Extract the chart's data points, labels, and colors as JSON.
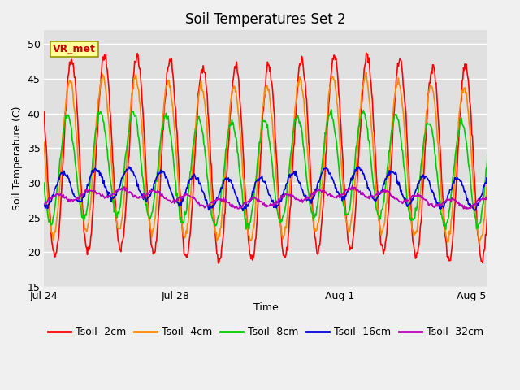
{
  "title": "Soil Temperatures Set 2",
  "xlabel": "Time",
  "ylabel": "Soil Temperature (C)",
  "ylim": [
    15,
    52
  ],
  "yticks": [
    15,
    20,
    25,
    30,
    35,
    40,
    45,
    50
  ],
  "annotation": "VR_met",
  "series": [
    {
      "label": "Tsoil -2cm",
      "color": "#ff0000",
      "amp": 14.0,
      "mean": 33.5,
      "phase_shift": 0.0,
      "noise": 0.4
    },
    {
      "label": "Tsoil -4cm",
      "color": "#ff8800",
      "amp": 11.0,
      "mean": 33.5,
      "phase_shift": 0.05,
      "noise": 0.3
    },
    {
      "label": "Tsoil -8cm",
      "color": "#00cc00",
      "amp": 7.5,
      "mean": 32.0,
      "phase_shift": 0.12,
      "noise": 0.3
    },
    {
      "label": "Tsoil -16cm",
      "color": "#0000dd",
      "amp": 2.2,
      "mean": 29.2,
      "phase_shift": 0.25,
      "noise": 0.2
    },
    {
      "label": "Tsoil -32cm",
      "color": "#bb00bb",
      "amp": 0.6,
      "mean": 27.8,
      "phase_shift": 0.45,
      "noise": 0.15
    }
  ],
  "plot_bg_color": "#e0e0e0",
  "fig_bg_color": "#f0f0f0",
  "grid_color": "#ffffff",
  "linewidth": 1.2,
  "legend_fontsize": 9,
  "title_fontsize": 12,
  "axis_fontsize": 9,
  "xtick_labels": [
    "Jul 24",
    "Jul 28",
    "Aug 1",
    "Aug 5"
  ],
  "xtick_days": [
    0,
    4,
    9,
    13
  ],
  "n_days": 14,
  "ppd": 48,
  "xlim_end": 13.5
}
